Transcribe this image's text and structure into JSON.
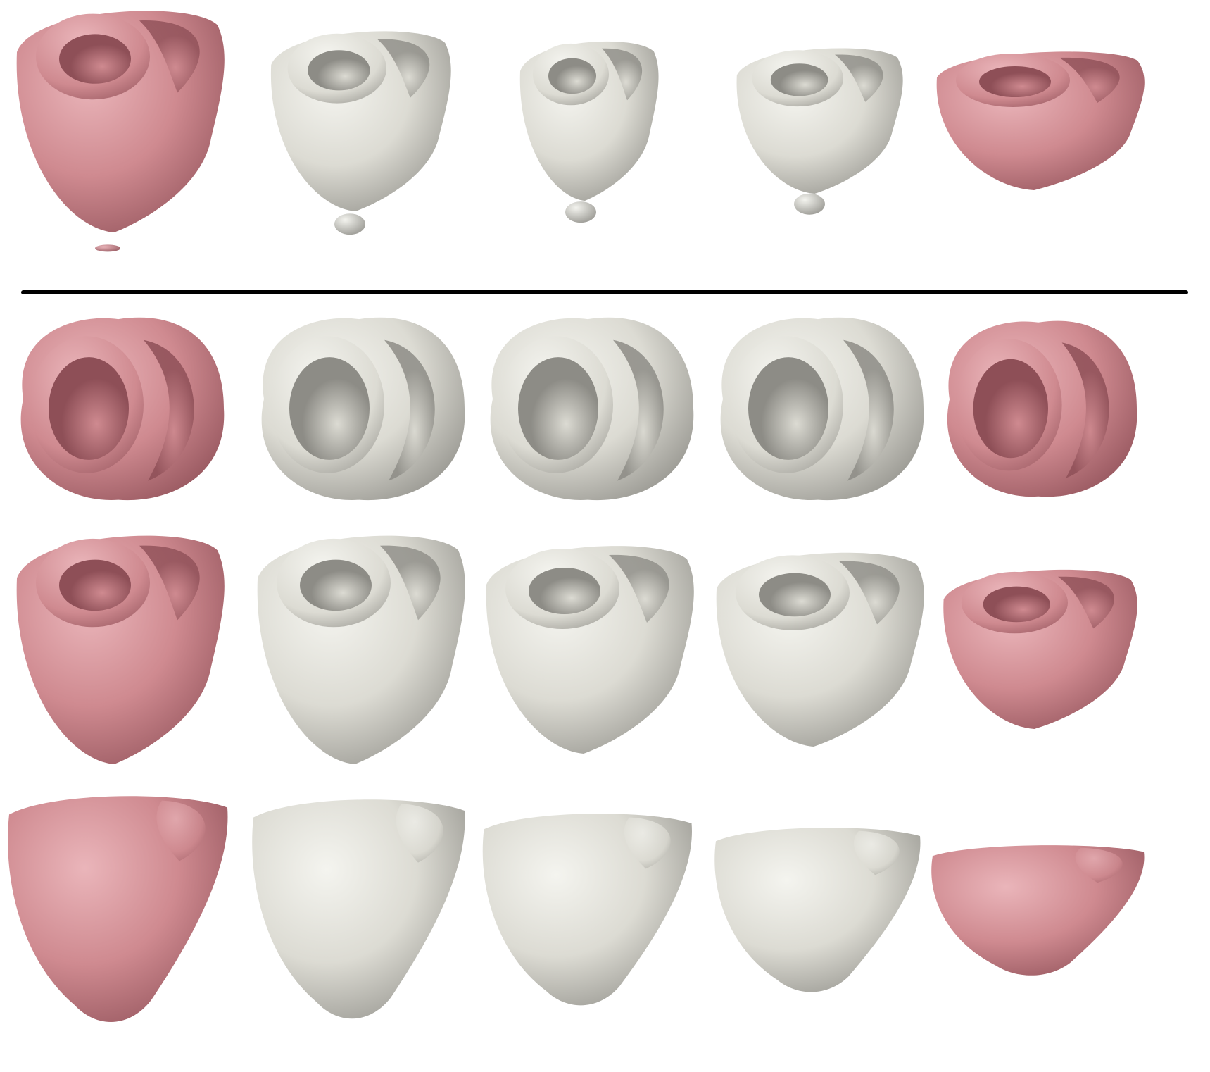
{
  "figure": {
    "background": "#ffffff",
    "palette": {
      "endpoint_fill": "#cf8a90",
      "endpoint_dark": "#8e4f57",
      "endpoint_light": "#eab5ba",
      "interp_fill": "#dcdbd3",
      "interp_dark": "#8d8c86",
      "interp_light": "#f4f4ef",
      "separator": "#000000"
    },
    "groups": [
      {
        "name": "top-group",
        "rows": [
          {
            "view": "basal-oblique",
            "columns": [
              {
                "kind": "endpoint",
                "stray_blob": true
              },
              {
                "kind": "interpolated",
                "stray_blob": true
              },
              {
                "kind": "interpolated",
                "stray_blob": true
              },
              {
                "kind": "interpolated",
                "stray_blob": true
              },
              {
                "kind": "endpoint",
                "stray_blob": false
              }
            ]
          }
        ]
      },
      {
        "name": "bottom-group",
        "rows": [
          {
            "view": "basal-top",
            "columns": [
              {
                "kind": "endpoint"
              },
              {
                "kind": "interpolated"
              },
              {
                "kind": "interpolated"
              },
              {
                "kind": "interpolated"
              },
              {
                "kind": "endpoint"
              }
            ]
          },
          {
            "view": "basal-oblique",
            "columns": [
              {
                "kind": "endpoint"
              },
              {
                "kind": "interpolated"
              },
              {
                "kind": "interpolated"
              },
              {
                "kind": "interpolated"
              },
              {
                "kind": "endpoint"
              }
            ]
          },
          {
            "view": "side",
            "columns": [
              {
                "kind": "endpoint"
              },
              {
                "kind": "interpolated"
              },
              {
                "kind": "interpolated"
              },
              {
                "kind": "interpolated"
              },
              {
                "kind": "endpoint"
              }
            ]
          }
        ]
      }
    ]
  }
}
